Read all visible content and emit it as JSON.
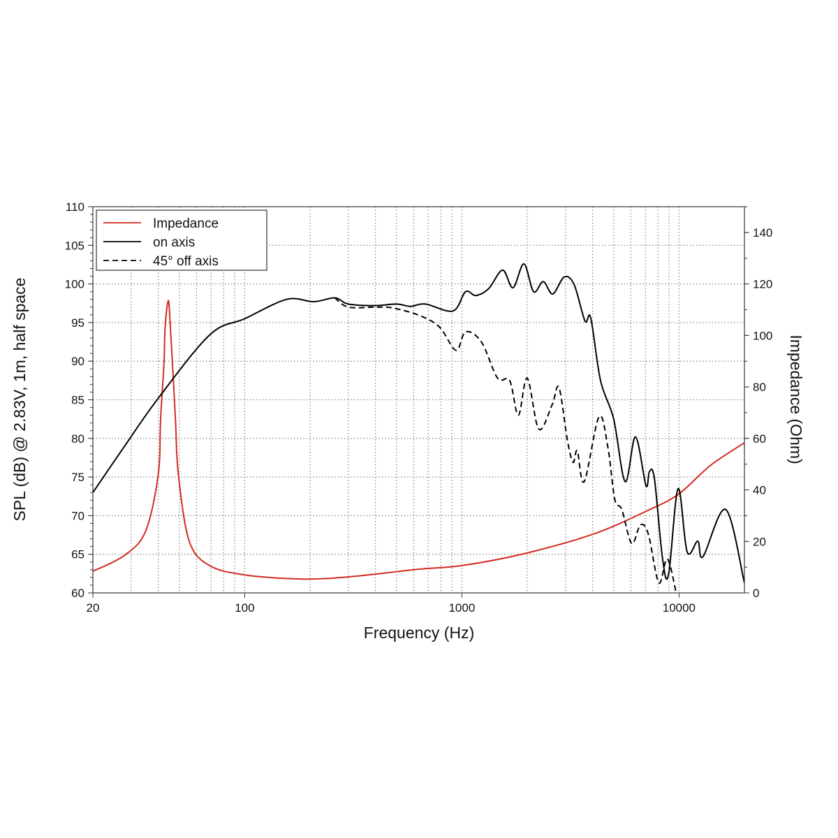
{
  "chart_data": {
    "type": "line",
    "title": "",
    "xlabel": "Frequency (Hz)",
    "ylabel": "SPL (dB) @ 2.83V, 1m, half space",
    "y2label": "Impedance (Ohm)",
    "xscale": "log",
    "xlim": [
      20,
      20000
    ],
    "ylim": [
      60,
      110
    ],
    "y2lim": [
      0,
      150
    ],
    "xticks": [
      20,
      100,
      1000,
      10000
    ],
    "xtick_labels": [
      "20",
      "100",
      "1000",
      "10000"
    ],
    "yticks": [
      60,
      65,
      70,
      75,
      80,
      85,
      90,
      95,
      100,
      105,
      110
    ],
    "ytick_labels": [
      "60",
      "65",
      "70",
      "75",
      "80",
      "85",
      "90",
      "95",
      "100",
      "105",
      "110"
    ],
    "y2ticks": [
      0,
      20,
      40,
      60,
      80,
      100,
      120,
      140
    ],
    "y2tick_labels": [
      "0",
      "20",
      "40",
      "60",
      "80",
      "100",
      "120",
      "140"
    ],
    "grid": true,
    "legend_placement": "top-left",
    "series": [
      {
        "name": "Impedance",
        "axis": "right",
        "color": "#d42a20",
        "style": "solid",
        "x": [
          20,
          28,
          35,
          40,
          41,
          42.5,
          43,
          44.5,
          45.5,
          46.5,
          48,
          49.5,
          55.6,
          69,
          100,
          180,
          300,
          630,
          1000,
          1930,
          4080,
          7300,
          10000,
          14000,
          20000
        ],
        "y": [
          8.4,
          14.6,
          24,
          46,
          67.5,
          89,
          103,
          113.6,
          103,
          89,
          67.5,
          46,
          20,
          10.6,
          7,
          5.4,
          6.2,
          9.2,
          10.6,
          15.2,
          23,
          32.3,
          38.5,
          49.6,
          58.3
        ]
      },
      {
        "name": "on axis",
        "axis": "left",
        "color": "#000000",
        "style": "solid",
        "x": [
          20,
          28,
          40,
          69,
          100,
          156,
          208,
          260,
          300,
          400,
          500,
          580,
          680,
          910,
          1040,
          1160,
          1330,
          1540,
          1720,
          1930,
          2140,
          2370,
          2620,
          2960,
          3290,
          3690,
          3920,
          4350,
          5000,
          5650,
          6300,
          7040,
          7300,
          7700,
          8400,
          8950,
          9900,
          10900,
          12200,
          12900,
          16400,
          20000
        ],
        "y": [
          73,
          79,
          85.2,
          93.4,
          95.5,
          98,
          97.7,
          98.2,
          97.4,
          97.2,
          97.4,
          97.1,
          97.4,
          96.5,
          99,
          98.5,
          99.4,
          101.8,
          99.5,
          102.6,
          99,
          100.3,
          98.7,
          100.9,
          99.9,
          95.2,
          95.6,
          87.5,
          82.5,
          74.4,
          80.2,
          73.9,
          75.7,
          74.8,
          64.4,
          62.4,
          73.5,
          65.3,
          66.7,
          64.7,
          70.8,
          61.3
        ]
      },
      {
        "name": "45° off axis",
        "axis": "left",
        "color": "#000000",
        "style": "dashed",
        "x": [
          260,
          300,
          400,
          480,
          640,
          790,
          940,
          1040,
          1230,
          1460,
          1660,
          1820,
          2000,
          2260,
          2600,
          2800,
          3060,
          3250,
          3400,
          3660,
          4280,
          4700,
          5060,
          5450,
          6050,
          6640,
          7220,
          8070,
          8830,
          9700
        ],
        "y": [
          98.2,
          97,
          97,
          96.9,
          95.9,
          94.4,
          91.4,
          93.8,
          92.5,
          87.8,
          87.5,
          83,
          87.8,
          81.2,
          84.3,
          86.6,
          79.8,
          76.9,
          78.4,
          74.4,
          82.8,
          78.9,
          72.1,
          70.8,
          66.4,
          68.8,
          67.6,
          61.3,
          64.4,
          60
        ]
      }
    ]
  }
}
